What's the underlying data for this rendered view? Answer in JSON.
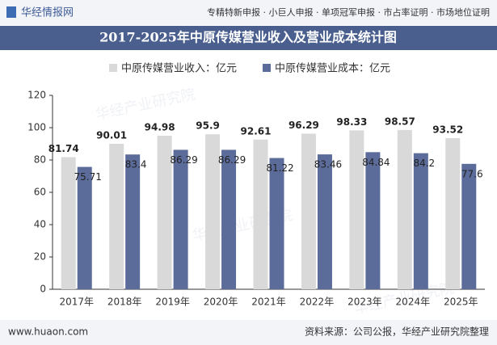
{
  "header": {
    "brand": "华经情报网",
    "services": "专精特新申报 · 小巨人申报 · 单项冠军申报 · 市占率证明 · 市场地位证明"
  },
  "chart_data": {
    "type": "bar",
    "title": "2017-2025年中原传媒营业收入及营业成本统计图",
    "categories": [
      "2017年",
      "2018年",
      "2019年",
      "2020年",
      "2021年",
      "2022年",
      "2023年",
      "2024年",
      "2025年"
    ],
    "series": [
      {
        "name": "中原传媒营业收入：亿元",
        "color": "#d9d9d9",
        "values": [
          81.74,
          90.01,
          94.98,
          95.9,
          92.61,
          96.29,
          98.33,
          98.57,
          93.52
        ]
      },
      {
        "name": "中原传媒营业成本：亿元",
        "color": "#5b6b9a",
        "values": [
          75.71,
          83.4,
          86.29,
          86.29,
          81.22,
          83.46,
          84.84,
          84.2,
          77.6
        ]
      }
    ],
    "ylim": [
      0,
      120
    ],
    "yticks": [
      0,
      20,
      40,
      60,
      80,
      100,
      120
    ],
    "grid": false,
    "legend": "top",
    "watermark": "华经产业研究院"
  },
  "footer": {
    "website": "www.huaon.com",
    "source": "资料来源：公司公报，华经产业研究院整理"
  }
}
